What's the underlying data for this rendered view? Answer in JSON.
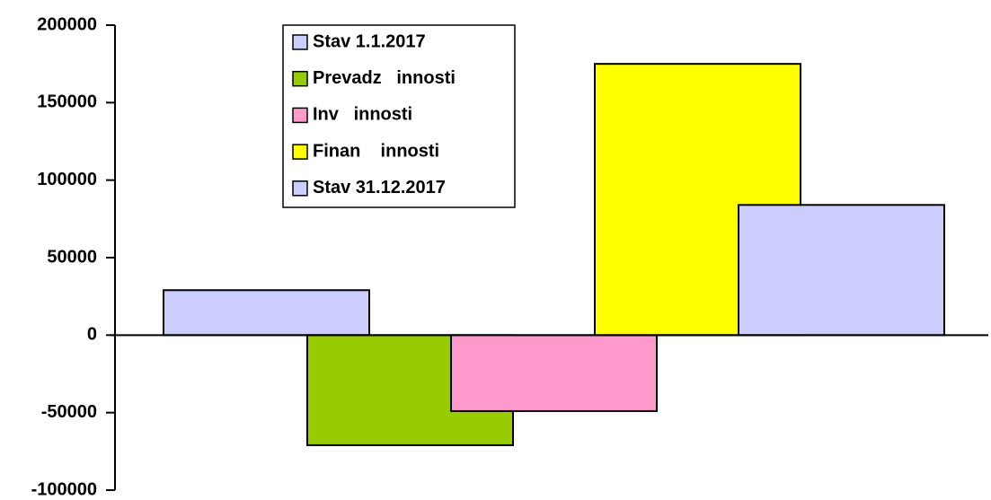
{
  "chart_data": {
    "type": "bar",
    "categories": [
      null
    ],
    "series": [
      {
        "name": "Stav 1.1.2017",
        "color": "#ccccff",
        "values": [
          29000
        ]
      },
      {
        "name": "Prevadz   innosti",
        "color": "#99cc00",
        "values": [
          -71000
        ]
      },
      {
        "name": "Inv   innosti",
        "color": "#ff99cc",
        "values": [
          -49000
        ]
      },
      {
        "name": "Finan    innosti",
        "color": "#ffff00",
        "values": [
          175000
        ]
      },
      {
        "name": "Stav 31.12.2017",
        "color": "#ccccff",
        "values": [
          84000
        ]
      }
    ],
    "ylim": [
      -100000,
      200000
    ],
    "yticks": [
      -100000,
      -50000,
      0,
      50000,
      100000,
      150000,
      200000
    ],
    "grid": false,
    "legend": "top"
  }
}
